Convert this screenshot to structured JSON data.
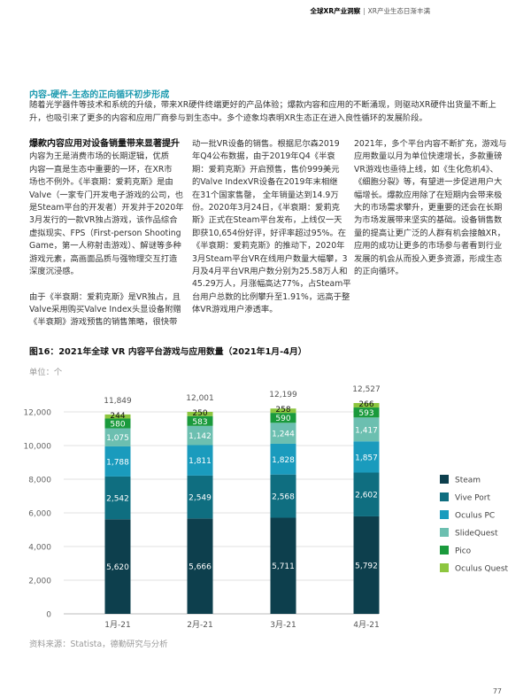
{
  "header": {
    "report": "全球XR产业洞察",
    "separator": "|",
    "section": "XR产业生态日渐丰满"
  },
  "intro": {
    "title": "内容-硬件-生态的正向循环初步形成",
    "body": "随着光学器件等技术和系统的升级，带来XR硬件终端更好的产品体验；爆款内容和应用的不断涌现，则驱动XR硬件出货量不断上升，也吸引来了更多的内容和应用厂商参与到生态中。多个迹象均表明XR生态正在进入良性循环的发展阶段。"
  },
  "columns": [
    {
      "heading": "爆款内容应用对设备销量带来显著提升",
      "lines": [
        "内容为王是消费市场的长期逻辑，优质",
        "内容一直是生态中重要的一环，在XR市",
        "场也不例外。《半衰期：爱莉克斯》是由",
        "Valve（一家专门开发电子游戏的公司，也",
        "是Steam平台的开发者）开发并于2020年",
        "3月发行的一款VR独占游戏，该作品综合",
        "虚拟现实、FPS（First-person Shooting",
        "Game，第一人称射击游戏）、解谜等多种",
        "游戏元素，高画面品质与强物理交互打造",
        "深度沉浸感。",
        "",
        "由于《半衰期：爱莉克斯》是VR独占，且",
        "Valve采用购买Valve Index头显设备附赠",
        "《半衰期》游戏预售的销售策略，很快带"
      ]
    },
    {
      "heading": "",
      "lines": [
        "动一批VR设备的销售。根据尼尔森2019",
        "年Q4公布数据，由于2019年Q4《半衰",
        "期：爱莉克斯》开启预售，售价999美元",
        "的Valve IndexVR设备在2019年末相继",
        "在31个国家售罄， 全年销量达到14.9万",
        "份。2020年3月24日，《半衰期：爱莉克",
        "斯》正式在Steam平台发布，上线仅一天",
        "即获10,654份好评，好评率超过95%。在",
        "《半衰期：爱莉克斯》的推动下，2020年",
        "3月Steam平台VR在线用户数量大幅攀，3",
        "月及4月平台VR用户数分别为25.58万人和",
        "45.29万人，月涨幅高达77%，占Steam平",
        "台用户总数的比例攀升至1.91%，远高于整",
        "体VR游戏用户渗透率。"
      ]
    },
    {
      "heading": "",
      "lines": [
        "2021年，多个平台内容不断扩充，游戏与",
        "应用数量以月为单位快速增长，多款重磅",
        "VR游戏也亟待上线，如《生化危机4》、",
        "《细胞分裂》等，有望进一步促进用户大",
        "幅增长。爆款应用除了在短期内会带来极",
        "大的市场需求攀升，更重要的还会在长期",
        "为市场发展带来坚实的基础。设备销售数",
        "量的提高让更广泛的人群有机会接触XR，",
        "应用的成功让更多的市场参与者看到行业",
        "发展的机会从而投入更多资源，形成生态",
        "的正向循环。"
      ]
    }
  ],
  "figure": {
    "title": "图16：2021年全球 VR 内容平台游戏与应用数量（2021年1月-4月）",
    "unit": "单位：个",
    "source": "资料来源：Statista，德勤研究与分析"
  },
  "chart_data": {
    "type": "bar",
    "stacked": true,
    "title": "图16：2021年全球 VR 内容平台游戏与应用数量（2021年1月-4月）",
    "ylabel": "单位：个",
    "categories": [
      "1月-21",
      "2月-21",
      "3月-21",
      "4月-21"
    ],
    "ylim": [
      0,
      12000
    ],
    "yticks": [
      0,
      2000,
      4000,
      6000,
      8000,
      10000,
      12000
    ],
    "ytick_labels": [
      "0",
      "2,000",
      "4,000",
      "6,000",
      "8,000",
      "10,000",
      "12,000"
    ],
    "totals": [
      11849,
      12001,
      12199,
      12527
    ],
    "total_labels": [
      "11,849",
      "12,001",
      "12,199",
      "12,527"
    ],
    "series": [
      {
        "name": "Steam",
        "color": "#0d3f4d",
        "values": [
          5620,
          5666,
          5711,
          5792
        ],
        "labels": [
          "5,620",
          "5,666",
          "5,711",
          "5,792"
        ]
      },
      {
        "name": "Vive Port",
        "color": "#0f6e80",
        "values": [
          2542,
          2549,
          2568,
          2602
        ],
        "labels": [
          "2,542",
          "2,549",
          "2,568",
          "2,602"
        ]
      },
      {
        "name": "Oculus PC",
        "color": "#1a9bbd",
        "values": [
          1788,
          1811,
          1828,
          1857
        ],
        "labels": [
          "1,788",
          "1,811",
          "1,828",
          "1,857"
        ]
      },
      {
        "name": "SlideQuest",
        "color": "#6cbfb0",
        "values": [
          1075,
          1142,
          1244,
          1417
        ],
        "labels": [
          "1,075",
          "1,142",
          "1,244",
          "1,417"
        ]
      },
      {
        "name": "Pico",
        "color": "#1a9a3c",
        "values": [
          580,
          583,
          590,
          593
        ],
        "labels": [
          "580",
          "583",
          "590",
          "593"
        ]
      },
      {
        "name": "Oculus Quest",
        "color": "#8dc63f",
        "values": [
          244,
          250,
          258,
          266
        ],
        "labels": [
          "244",
          "250",
          "258",
          "266"
        ]
      }
    ],
    "legend": "right",
    "grid": true
  },
  "page_number": "77"
}
